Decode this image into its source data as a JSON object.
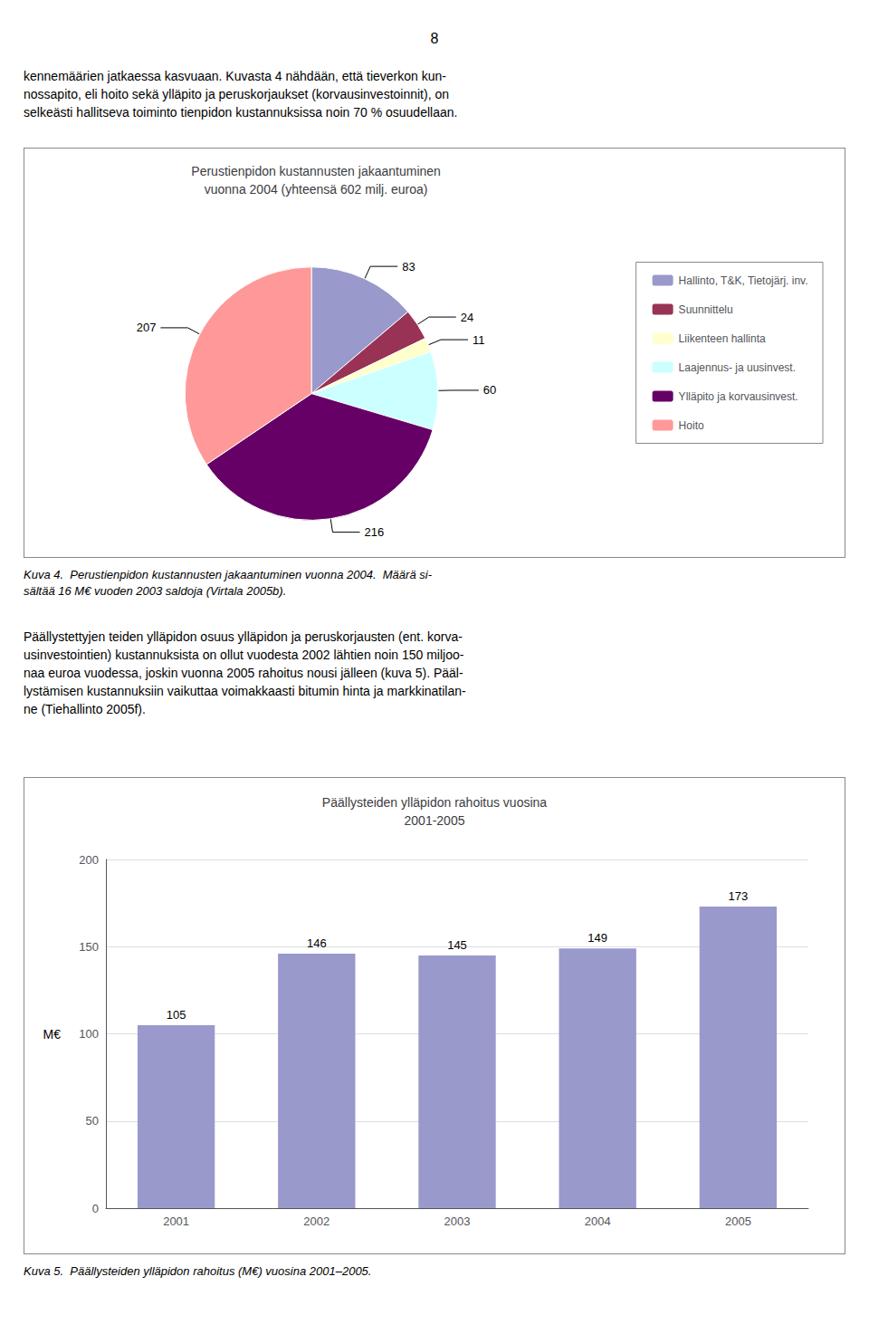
{
  "page_number": "8",
  "text_before": [
    "kennemäärien jatkaessa kasvuaan. Kuvasta 4 nähdään, että tieverkon kun-",
    "nossapito, eli hoito sekä ylläpito ja peruskorjaukset (korvausinvestoinnit), on",
    "selkeästi hallitseva toiminto tienpidon kustannuksissa noin 70 % osuudellaan."
  ],
  "text_between": [
    "Päällystettyjen teiden ylläpidon osuus ylläpidon ja peruskorjausten (ent. korva-",
    "usinvestointien) kustannuksista on ollut vuodesta 2002 lähtien noin 150 miljoo-",
    "naa euroa vuodessa, joskin vuonna 2005 rahoitus nousi jälleen (kuva 5). Pääl-",
    "lystämisen kustannuksiin vaikuttaa voimakkaasti bitumin hinta ja markkinatilan-",
    "ne (Tiehallinto 2005f)."
  ],
  "chart_data": [
    {
      "type": "pie",
      "title": "Perustienpidon kustannusten jakaantuminen\nvuonna 2004 (yhteensä 602 milj. euroa)",
      "categories": [
        "Hallinto, T&K, Tietojärj. inv.",
        "Suunnittelu",
        "Liikenteen hallinta",
        "Laajennus- ja uusinvest.",
        "Ylläpito ja korvausinvest.",
        "Hoito"
      ],
      "values": [
        83,
        24,
        11,
        60,
        216,
        207
      ],
      "colors": [
        "#9999CC",
        "#993355",
        "#FFFFCC",
        "#CCFFFF",
        "#660066",
        "#FF9999"
      ],
      "data_labels": true,
      "legend": "right",
      "caption": [
        "Kuva 4.  Perustienpidon kustannusten jakaantuminen vuonna 2004.  Määrä si-",
        "sältää 16 M€ vuoden 2003 saldoja (Virtala 2005b)."
      ]
    },
    {
      "type": "bar",
      "title": "Päällysteiden ylläpidon rahoitus vuosina\n2001-2005",
      "categories": [
        "2001",
        "2002",
        "2003",
        "2004",
        "2005"
      ],
      "values": [
        105,
        146,
        145,
        149,
        173
      ],
      "color": "#9999CC",
      "y_label": "M€",
      "ylim": [
        0,
        200
      ],
      "yticks": [
        0,
        50,
        100,
        150,
        200
      ],
      "grid": true,
      "data_labels": true,
      "caption": [
        "Kuva 5.  Päällysteiden ylläpidon rahoitus (M€) vuosina 2001–2005."
      ]
    }
  ]
}
